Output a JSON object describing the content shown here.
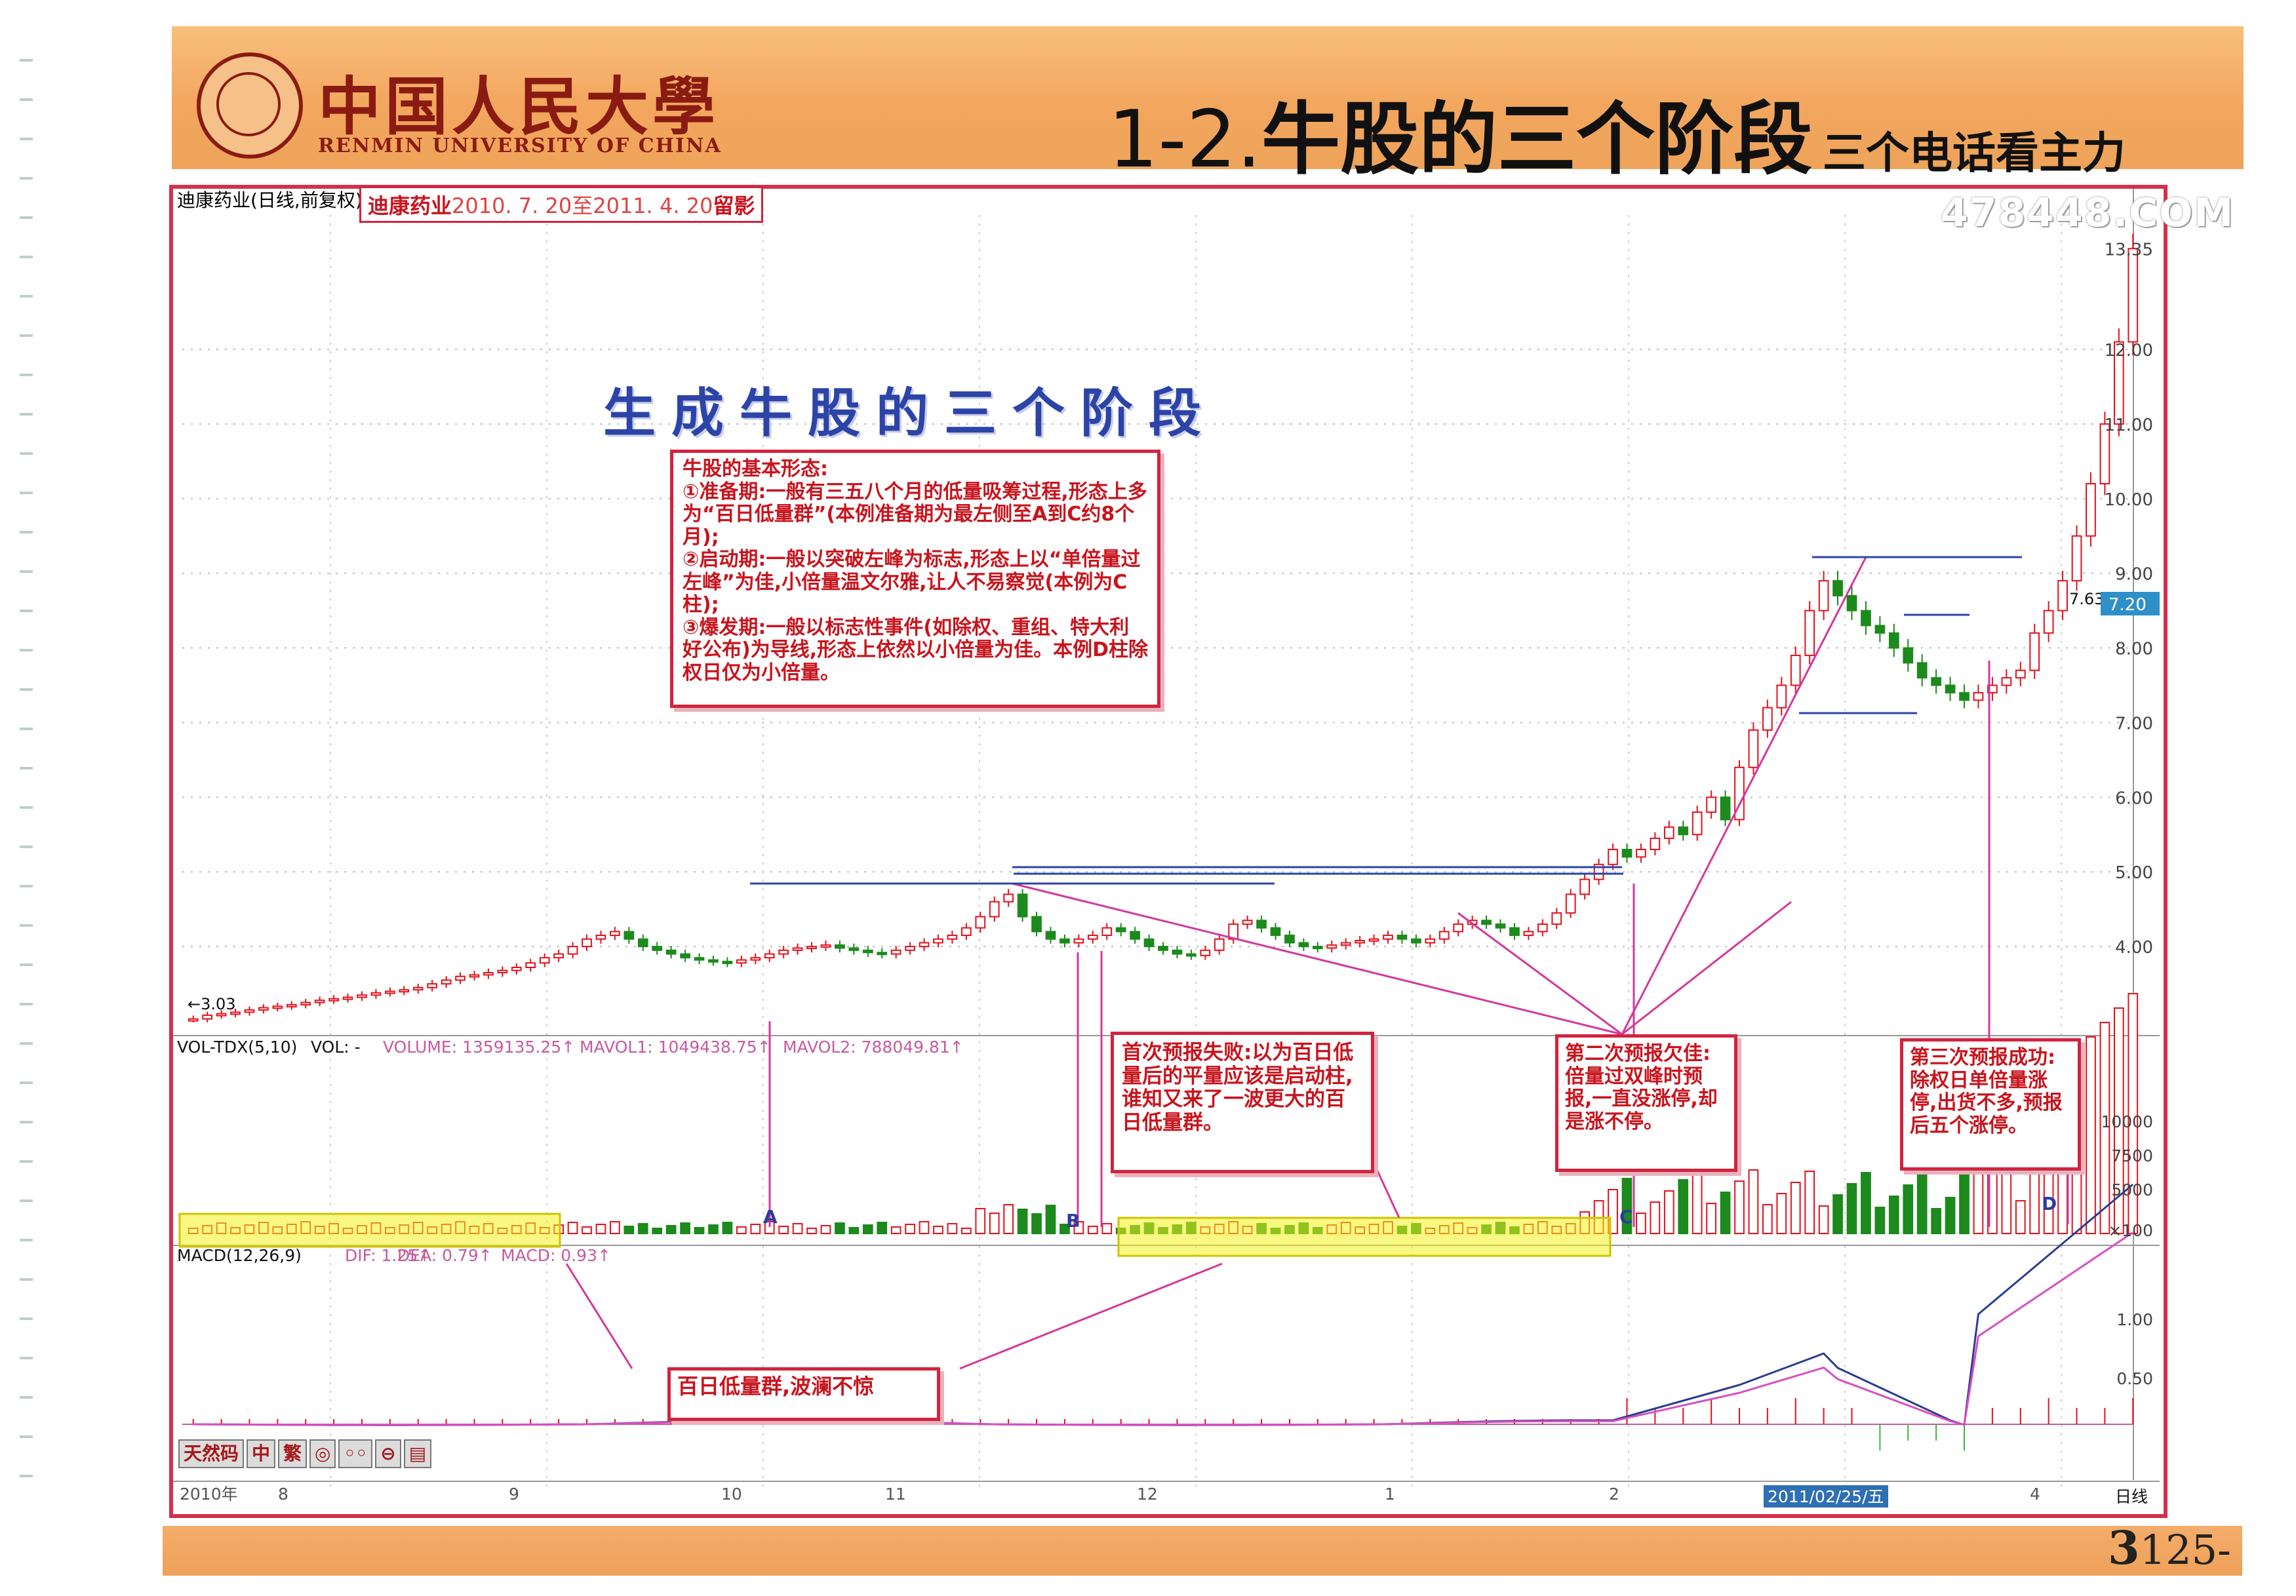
{
  "header": {
    "university_cn": "中国人民大學",
    "university_en": "RENMIN UNIVERSITY OF CHINA",
    "title_prefix": "1-2.",
    "title_main": "牛股的三个阶段",
    "title_sub": "三个电话看主力"
  },
  "watermark": "478448.COM",
  "stock_label": "迪康药业(日线,前复权)",
  "date_label": {
    "name": "迪康药业",
    "dates": "2010. 7. 20至2011. 4. 20",
    "suffix": "留影"
  },
  "stage_heading": "生成牛股的三个阶段",
  "notes": {
    "basic": [
      "牛股的基本形态:",
      "①准备期:一般有三五八个月的低量吸筹过程,形态上多为“百日低量群”(本例准备期为最左侧至A到C约8个月);",
      "②启动期:一般以突破左峰为标志,形态上以“单倍量过左峰”为佳,小倍量温文尔雅,让人不易察觉(本例为C柱);",
      "③爆发期:一般以标志性事件(如除权、重组、特大利好公布)为导线,形态上依然以小倍量为佳。本例D柱除权日仅为小倍量。"
    ],
    "first": "首次预报失败:以为百日低量后的平量应该是启动柱,谁知又来了一波更大的百日低量群。",
    "second": "第二次预报欠佳:倍量过双峰时预报,一直没涨停,却是涨不停。",
    "third": "第三次预报成功:除权日单倍量涨停,出货不多,预报后五个涨停。",
    "group": "百日低量群,波澜不惊"
  },
  "toolbar": {
    "items": [
      "天然码",
      "中",
      "繁",
      "◎",
      "◦◦",
      "⊖",
      "▤"
    ]
  },
  "page": {
    "num_big": "3",
    "num": "125-"
  },
  "chart_data": [
    {
      "type": "candlestick",
      "panel": "price",
      "y_ticks": [
        "13.35",
        "12.00",
        "11.00",
        "10.00",
        "9.00",
        "8.00",
        "7.00",
        "6.00",
        "5.00",
        "4.00"
      ],
      "ylim": [
        3.0,
        13.8
      ],
      "low_marker": "←3.03",
      "range_label": "7.63-7.72",
      "price_tag": "7.20",
      "close": [
        3.03,
        3.08,
        3.1,
        3.12,
        3.15,
        3.18,
        3.2,
        3.22,
        3.25,
        3.28,
        3.3,
        3.32,
        3.35,
        3.38,
        3.4,
        3.42,
        3.45,
        3.5,
        3.55,
        3.6,
        3.62,
        3.65,
        3.68,
        3.72,
        3.78,
        3.85,
        3.9,
        4.0,
        4.1,
        4.15,
        4.2,
        4.1,
        4.0,
        3.95,
        3.9,
        3.85,
        3.82,
        3.8,
        3.78,
        3.82,
        3.85,
        3.9,
        3.95,
        3.98,
        4.0,
        4.02,
        3.98,
        3.95,
        3.92,
        3.9,
        3.95,
        4.0,
        4.05,
        4.1,
        4.15,
        4.25,
        4.4,
        4.6,
        4.7,
        4.4,
        4.2,
        4.1,
        4.05,
        4.1,
        4.15,
        4.25,
        4.2,
        4.1,
        4.0,
        3.95,
        3.9,
        3.88,
        3.95,
        4.1,
        4.3,
        4.35,
        4.25,
        4.15,
        4.05,
        4.0,
        3.98,
        4.02,
        4.05,
        4.08,
        4.1,
        4.15,
        4.1,
        4.05,
        4.1,
        4.2,
        4.3,
        4.35,
        4.3,
        4.25,
        4.15,
        4.2,
        4.3,
        4.45,
        4.7,
        4.9,
        5.1,
        5.3,
        5.2,
        5.3,
        5.45,
        5.6,
        5.5,
        5.8,
        6.0,
        5.7,
        6.4,
        6.9,
        7.2,
        7.5,
        7.9,
        8.5,
        8.9,
        8.7,
        8.5,
        8.3,
        8.2,
        8.0,
        7.8,
        7.6,
        7.5,
        7.4,
        7.3,
        7.4,
        7.5,
        7.6,
        7.7,
        8.2,
        8.5,
        8.9,
        9.5,
        10.2,
        11.0,
        12.1,
        13.35
      ]
    },
    {
      "type": "bar",
      "panel": "volume",
      "title": "VOL-TDX(5,10)",
      "labels": [
        "VOL: -",
        "VOLUME: 1359135.25↑",
        "MAVOL1: 1049438.75↑",
        "MAVOL2: 788049.81↑"
      ],
      "y_ticks": [
        "10000",
        "7500",
        "5000",
        "×100"
      ],
      "markers": [
        "A",
        "B",
        "C",
        "D"
      ]
    },
    {
      "type": "line",
      "panel": "macd",
      "title": "MACD(12,26,9)",
      "labels": [
        "DIF: 1.25↑",
        "DEA: 0.79↑",
        "MACD: 0.93↑"
      ],
      "y_ticks": [
        "1.00",
        "0.50"
      ]
    }
  ],
  "x_axis": {
    "labels": [
      "2010年",
      "8",
      "9",
      "10",
      "11",
      "12",
      "1",
      "2",
      "4"
    ],
    "highlight": "2011/02/25/五",
    "period": "日线"
  }
}
